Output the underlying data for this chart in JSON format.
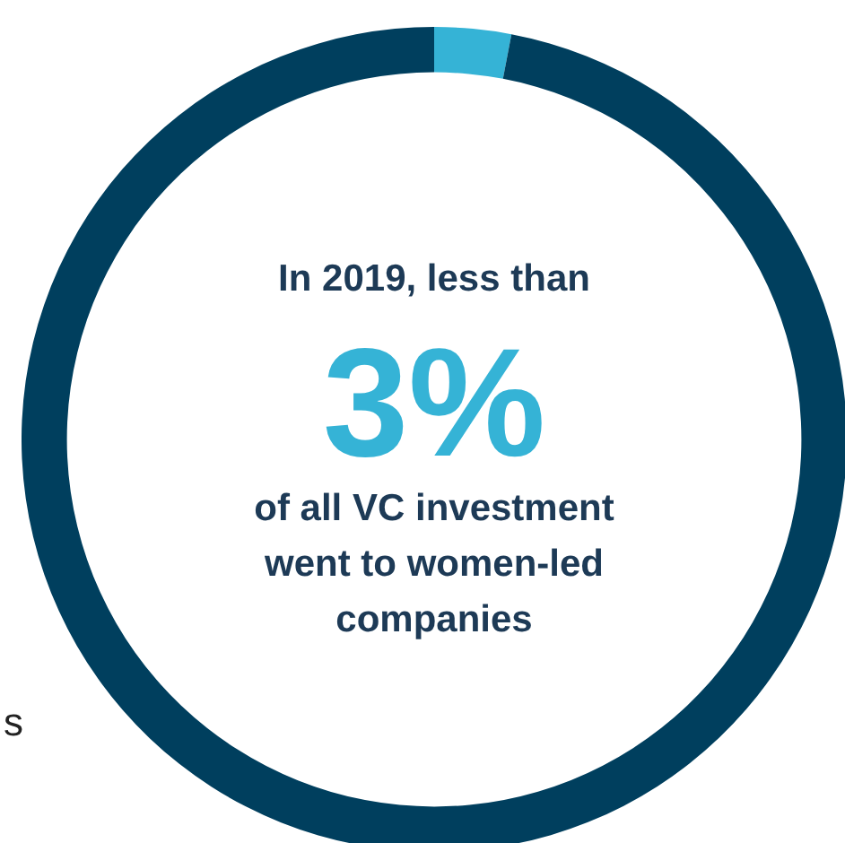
{
  "chart_data": {
    "type": "donut",
    "categories": [
      null,
      null
    ],
    "values": [
      3,
      97
    ],
    "colors": [
      "#35b3d6",
      "#003f5e"
    ],
    "legend": false,
    "title": "In 2019, less than",
    "value_labels": [
      "3%",
      null
    ],
    "subtitle": "of all VC investment went to women-led companies",
    "annotations": [
      "s"
    ]
  }
}
